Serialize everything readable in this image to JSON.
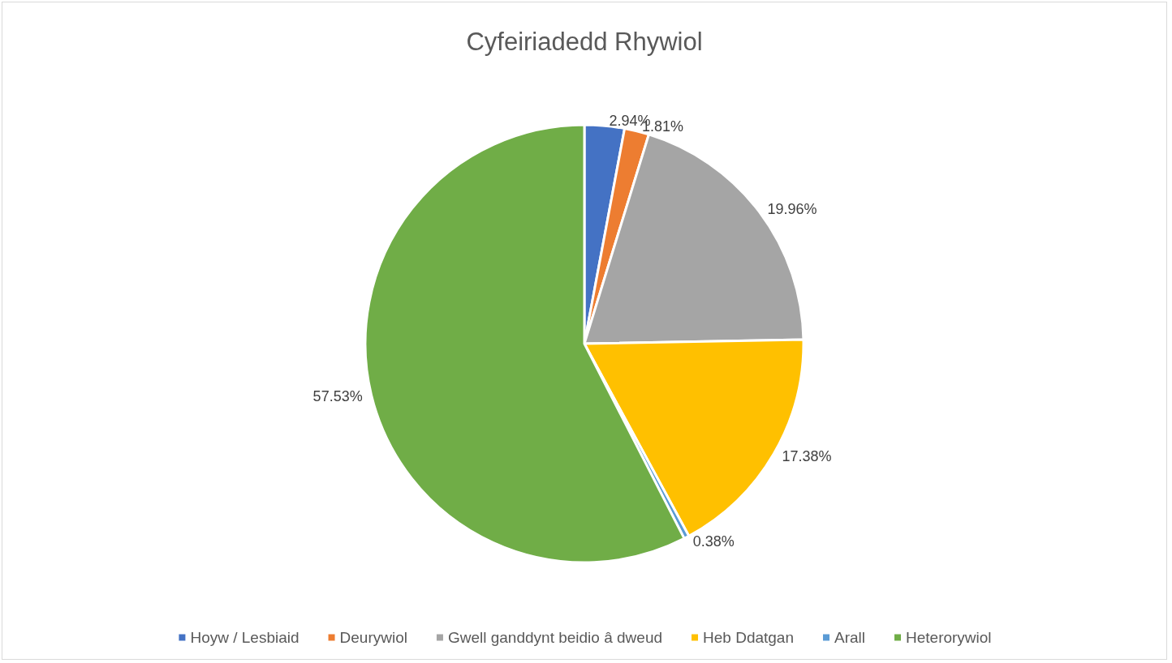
{
  "chart_data": {
    "type": "pie",
    "title": "Cyfeiriadedd Rhywiol",
    "categories": [
      "Hoyw / Lesbiaid",
      "Deurywiol",
      "Gwell ganddynt beidio â dweud",
      "Heb Ddatgan",
      "Arall",
      "Heterorywiol"
    ],
    "values": [
      2.94,
      1.81,
      19.96,
      17.38,
      0.38,
      57.53
    ],
    "value_labels": [
      "2.94%",
      "1.81%",
      "19.96%",
      "17.38%",
      "0.38%",
      "57.53%"
    ],
    "colors": [
      "#4472c4",
      "#ed7d31",
      "#a5a5a5",
      "#ffc000",
      "#5b9bd5",
      "#70ad47"
    ],
    "legend": "bottom"
  }
}
